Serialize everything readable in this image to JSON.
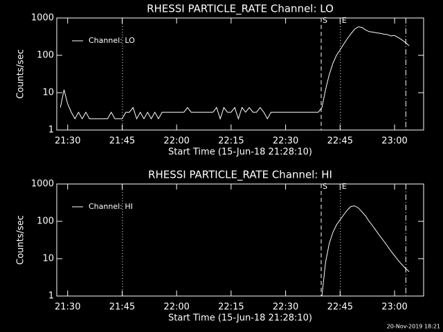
{
  "chart_data": [
    {
      "type": "line",
      "title": "RHESSI PARTICLE_RATE Channel: LO",
      "xlabel": "Start Time (15-Jun-18 21:28:10)",
      "ylabel": "Counts/sec",
      "log_y": true,
      "ylim": [
        1,
        1000
      ],
      "yticks": [
        1,
        10,
        100,
        1000
      ],
      "xlim": [
        1287,
        1388
      ],
      "xticks": [
        {
          "value": 1290,
          "label": "21:30"
        },
        {
          "value": 1305,
          "label": "21:45"
        },
        {
          "value": 1320,
          "label": "22:00"
        },
        {
          "value": 1335,
          "label": "22:15"
        },
        {
          "value": 1350,
          "label": "22:30"
        },
        {
          "value": 1365,
          "label": "22:45"
        },
        {
          "value": 1380,
          "label": "23:00"
        }
      ],
      "x": [
        1288,
        1289,
        1290,
        1291,
        1292,
        1293,
        1294,
        1295,
        1296,
        1297,
        1298,
        1299,
        1300,
        1301,
        1302,
        1303,
        1304,
        1305,
        1306,
        1307,
        1308,
        1309,
        1310,
        1311,
        1312,
        1313,
        1314,
        1315,
        1316,
        1317,
        1318,
        1319,
        1320,
        1321,
        1322,
        1323,
        1324,
        1325,
        1326,
        1327,
        1328,
        1329,
        1330,
        1331,
        1332,
        1333,
        1334,
        1335,
        1336,
        1337,
        1338,
        1339,
        1340,
        1341,
        1342,
        1343,
        1344,
        1345,
        1346,
        1347,
        1348,
        1349,
        1350,
        1351,
        1352,
        1353,
        1354,
        1355,
        1356,
        1357,
        1358,
        1359,
        1360,
        1361,
        1362,
        1363,
        1364,
        1365,
        1366,
        1367,
        1368,
        1369,
        1370,
        1371,
        1372,
        1373,
        1374,
        1375,
        1376,
        1377,
        1378,
        1379,
        1380,
        1381,
        1382,
        1383,
        1384
      ],
      "series": [
        {
          "name": "Channel: LO",
          "color": "#ffffff",
          "values": [
            4,
            12,
            5,
            3,
            2,
            3,
            2,
            3,
            2,
            2,
            2,
            2,
            2,
            2,
            3,
            2,
            2,
            2,
            3,
            3,
            4,
            2,
            3,
            2,
            3,
            2,
            3,
            2,
            3,
            3,
            3,
            3,
            3,
            3,
            3,
            4,
            3,
            3,
            3,
            3,
            3,
            3,
            3,
            4,
            2,
            4,
            3,
            3,
            4,
            2,
            4,
            3,
            4,
            3,
            3,
            4,
            3,
            2,
            3,
            3,
            3,
            3,
            3,
            3,
            3,
            3,
            3,
            3,
            3,
            3,
            3,
            3,
            4,
            12,
            30,
            60,
            100,
            140,
            200,
            280,
            380,
            500,
            580,
            560,
            480,
            430,
            420,
            400,
            390,
            370,
            360,
            330,
            340,
            300,
            260,
            220,
            180
          ]
        }
      ],
      "markers": [
        {
          "x": 1305.1,
          "style": "dotted"
        },
        {
          "x": 1359.8,
          "style": "dashed",
          "label": "S"
        },
        {
          "x": 1365.1,
          "style": "dotted",
          "label": "E"
        },
        {
          "x": 1383.1,
          "style": "dashdot"
        }
      ]
    },
    {
      "type": "line",
      "title": "RHESSI PARTICLE_RATE Channel: HI",
      "xlabel": "Start Time (15-Jun-18 21:28:10)",
      "ylabel": "Counts/sec",
      "log_y": true,
      "ylim": [
        1,
        1000
      ],
      "yticks": [
        1,
        10,
        100,
        1000
      ],
      "xlim": [
        1287,
        1388
      ],
      "xticks": [
        {
          "value": 1290,
          "label": "21:30"
        },
        {
          "value": 1305,
          "label": "21:45"
        },
        {
          "value": 1320,
          "label": "22:00"
        },
        {
          "value": 1335,
          "label": "22:15"
        },
        {
          "value": 1350,
          "label": "22:30"
        },
        {
          "value": 1365,
          "label": "22:45"
        },
        {
          "value": 1380,
          "label": "23:00"
        }
      ],
      "x": [
        1360,
        1361,
        1362,
        1363,
        1364,
        1365,
        1366,
        1367,
        1368,
        1369,
        1370,
        1371,
        1372,
        1373,
        1374,
        1375,
        1376,
        1377,
        1378,
        1379,
        1380,
        1381,
        1382,
        1383,
        1384
      ],
      "series": [
        {
          "name": "Channel: HI",
          "color": "#ffffff",
          "values": [
            1,
            8,
            25,
            50,
            80,
            110,
            150,
            200,
            250,
            260,
            230,
            180,
            140,
            100,
            75,
            55,
            40,
            30,
            22,
            16,
            12,
            9,
            7,
            5.5,
            4.5
          ]
        }
      ],
      "markers": [
        {
          "x": 1305.1,
          "style": "dotted"
        },
        {
          "x": 1359.8,
          "style": "dashed",
          "label": "S"
        },
        {
          "x": 1365.1,
          "style": "dotted",
          "label": "E"
        },
        {
          "x": 1383.1,
          "style": "dashdot"
        }
      ]
    }
  ],
  "footer": "20-Nov-2019 18:21"
}
